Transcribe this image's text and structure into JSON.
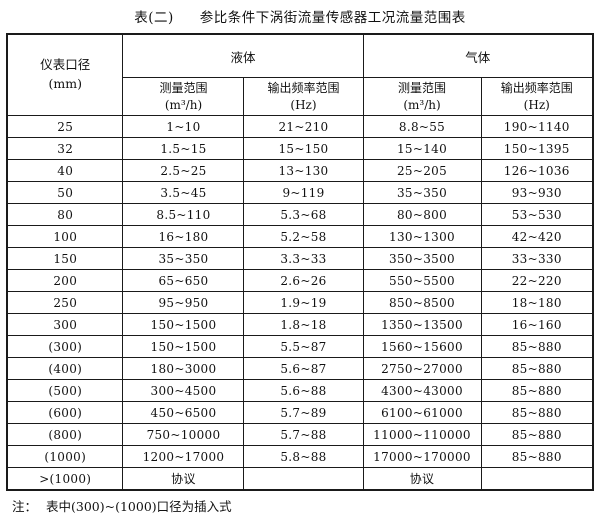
{
  "title": {
    "prefix": "表(二)",
    "main": "参比条件下涡街流量传感器工况流量范围表"
  },
  "table": {
    "corner_header": {
      "line1": "仪表口径",
      "line2": "(mm)"
    },
    "group_headers": {
      "liquid": "液体",
      "gas": "气体"
    },
    "sub_headers": {
      "range_label": "测量范围",
      "range_unit": "(m³/h)",
      "freq_label": "输出频率范围",
      "freq_unit": "(Hz)"
    },
    "rows": [
      {
        "diameter": "25",
        "liquid_range": "1~10",
        "liquid_freq": "21~210",
        "gas_range": "8.8~55",
        "gas_freq": "190~1140"
      },
      {
        "diameter": "32",
        "liquid_range": "1.5~15",
        "liquid_freq": "15~150",
        "gas_range": "15~140",
        "gas_freq": "150~1395"
      },
      {
        "diameter": "40",
        "liquid_range": "2.5~25",
        "liquid_freq": "13~130",
        "gas_range": "25~205",
        "gas_freq": "126~1036"
      },
      {
        "diameter": "50",
        "liquid_range": "3.5~45",
        "liquid_freq": "9~119",
        "gas_range": "35~350",
        "gas_freq": "93~930"
      },
      {
        "diameter": "80",
        "liquid_range": "8.5~110",
        "liquid_freq": "5.3~68",
        "gas_range": "80~800",
        "gas_freq": "53~530"
      },
      {
        "diameter": "100",
        "liquid_range": "16~180",
        "liquid_freq": "5.2~58",
        "gas_range": "130~1300",
        "gas_freq": "42~420"
      },
      {
        "diameter": "150",
        "liquid_range": "35~350",
        "liquid_freq": "3.3~33",
        "gas_range": "350~3500",
        "gas_freq": "33~330"
      },
      {
        "diameter": "200",
        "liquid_range": "65~650",
        "liquid_freq": "2.6~26",
        "gas_range": "550~5500",
        "gas_freq": "22~220"
      },
      {
        "diameter": "250",
        "liquid_range": "95~950",
        "liquid_freq": "1.9~19",
        "gas_range": "850~8500",
        "gas_freq": "18~180"
      },
      {
        "diameter": "300",
        "liquid_range": "150~1500",
        "liquid_freq": "1.8~18",
        "gas_range": "1350~13500",
        "gas_freq": "16~160"
      },
      {
        "diameter": "(300)",
        "liquid_range": "150~1500",
        "liquid_freq": "5.5~87",
        "gas_range": "1560~15600",
        "gas_freq": "85~880"
      },
      {
        "diameter": "(400)",
        "liquid_range": "180~3000",
        "liquid_freq": "5.6~87",
        "gas_range": "2750~27000",
        "gas_freq": "85~880"
      },
      {
        "diameter": "(500)",
        "liquid_range": "300~4500",
        "liquid_freq": "5.6~88",
        "gas_range": "4300~43000",
        "gas_freq": "85~880"
      },
      {
        "diameter": "(600)",
        "liquid_range": "450~6500",
        "liquid_freq": "5.7~89",
        "gas_range": "6100~61000",
        "gas_freq": "85~880"
      },
      {
        "diameter": "(800)",
        "liquid_range": "750~10000",
        "liquid_freq": "5.7~88",
        "gas_range": "11000~110000",
        "gas_freq": "85~880"
      },
      {
        "diameter": "(1000)",
        "liquid_range": "1200~17000",
        "liquid_freq": "5.8~88",
        "gas_range": "17000~170000",
        "gas_freq": "85~880"
      },
      {
        "diameter": ">(1000)",
        "liquid_range": "协议",
        "liquid_freq": "",
        "gas_range": "协议",
        "gas_freq": ""
      }
    ]
  },
  "note": {
    "label": "注：",
    "text": "表中(300)~(1000)口径为插入式"
  }
}
